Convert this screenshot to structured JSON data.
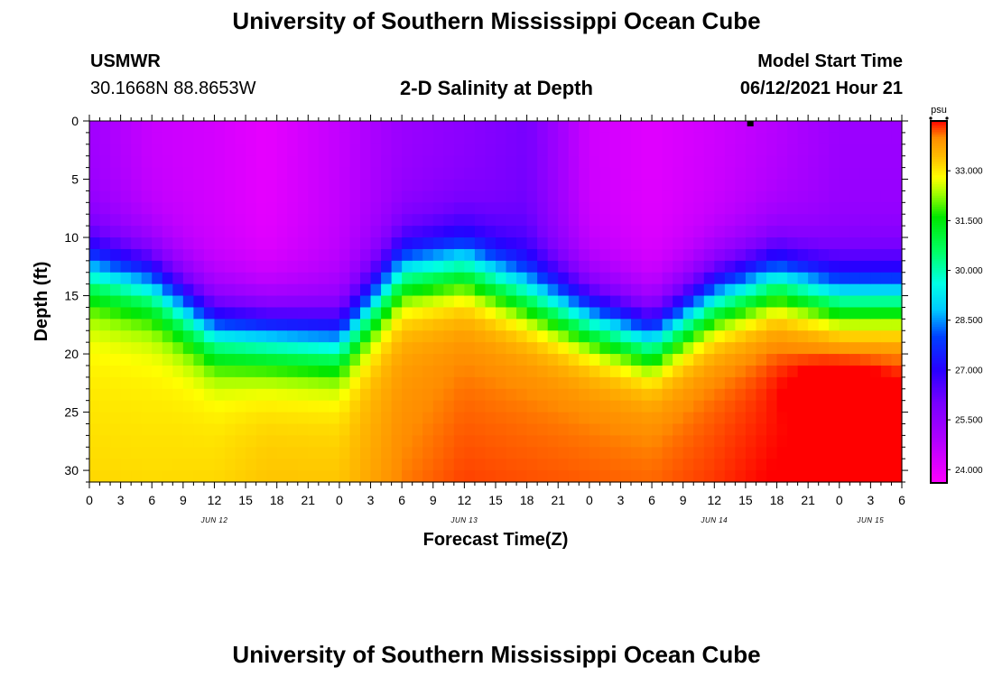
{
  "header": {
    "title_top": "University of Southern Mississippi Ocean Cube",
    "station": "USMWR",
    "coords": "30.1668N  88.8653W",
    "subtitle": "2-D Salinity at Depth",
    "model_start_label": "Model Start Time",
    "model_start_value": "06/12/2021 Hour 21",
    "title_bottom": "University of Southern Mississippi Ocean Cube"
  },
  "chart_data": {
    "type": "heatmap",
    "title": "2-D Salinity at Depth",
    "xlabel": "Forecast Time(Z)",
    "ylabel": "Depth (ft)",
    "x_tick_labels": [
      "0",
      "3",
      "6",
      "9",
      "12",
      "15",
      "18",
      "21",
      "0",
      "3",
      "6",
      "9",
      "12",
      "15",
      "18",
      "21",
      "0",
      "3",
      "6",
      "9",
      "12",
      "15",
      "18",
      "21",
      "0",
      "3",
      "6"
    ],
    "date_labels": [
      "JUN 12",
      "JUN 13",
      "JUN 14",
      "JUN 15"
    ],
    "y_ticks": [
      0,
      5,
      10,
      15,
      20,
      25,
      30
    ],
    "ylim": [
      0,
      31
    ],
    "xlim_hours": [
      0,
      78
    ],
    "colorbar": {
      "unit": "psu",
      "ticks": [
        "24.000",
        "25.500",
        "27.000",
        "28.500",
        "30.000",
        "31.500",
        "33.000"
      ],
      "range": [
        23.6,
        34.5
      ]
    },
    "marker": {
      "hour": 63.5,
      "depth": 0
    },
    "time_hours": [
      0,
      6,
      12,
      17,
      24,
      30,
      36,
      42,
      48,
      54,
      60,
      66,
      72,
      78
    ],
    "thermocline_depth_ft": [
      10,
      11.2,
      15.2,
      15.6,
      16.2,
      10.2,
      9.5,
      12.0,
      14.2,
      16.0,
      12.5,
      10.8,
      12.5,
      12.5
    ],
    "bottom_salinity_psu": [
      32.9,
      32.9,
      33.0,
      33.2,
      33.2,
      33.8,
      34.0,
      34.0,
      34.0,
      34.0,
      34.1,
      34.3,
      34.5,
      34.5
    ],
    "surface_salinity_psu": [
      25.2,
      24.5,
      24.3,
      24.0,
      24.6,
      25.3,
      25.6,
      26.0,
      24.4,
      24.1,
      24.4,
      24.8,
      25.3,
      25.3
    ],
    "anomaly": {
      "center_hour": 72,
      "center_depth_ft": 23,
      "peak_psu": 34.5
    }
  }
}
